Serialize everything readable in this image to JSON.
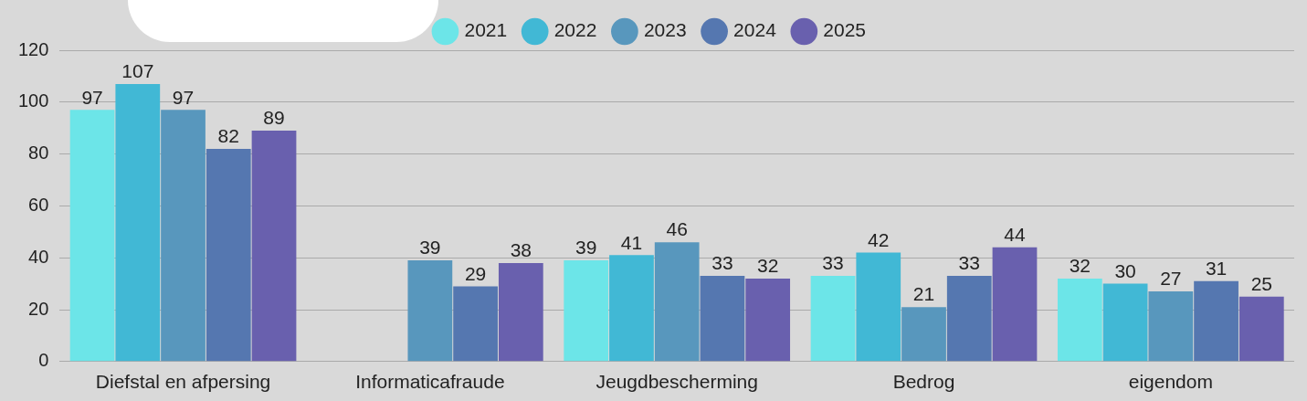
{
  "chart_data": {
    "type": "bar",
    "categories": [
      "Diefstal en afpersing",
      "Informaticafraude",
      "Jeugdbescherming",
      "Bedrog",
      "eigendom"
    ],
    "series": [
      {
        "name": "2021",
        "color": "#6ce5e8",
        "values": [
          97,
          null,
          39,
          33,
          32
        ]
      },
      {
        "name": "2022",
        "color": "#41b8d5",
        "values": [
          107,
          null,
          41,
          42,
          30
        ]
      },
      {
        "name": "2023",
        "color": "#5897bd",
        "values": [
          97,
          39,
          46,
          21,
          27
        ]
      },
      {
        "name": "2024",
        "color": "#5577b0",
        "values": [
          82,
          29,
          33,
          33,
          31
        ]
      },
      {
        "name": "2025",
        "color": "#6960ae",
        "values": [
          89,
          38,
          32,
          44,
          25
        ]
      }
    ],
    "ylim": [
      0,
      120
    ],
    "yticks": [
      0,
      20,
      40,
      60,
      80,
      100,
      120
    ],
    "grid": "y",
    "legend": "top",
    "data_labels": true
  }
}
